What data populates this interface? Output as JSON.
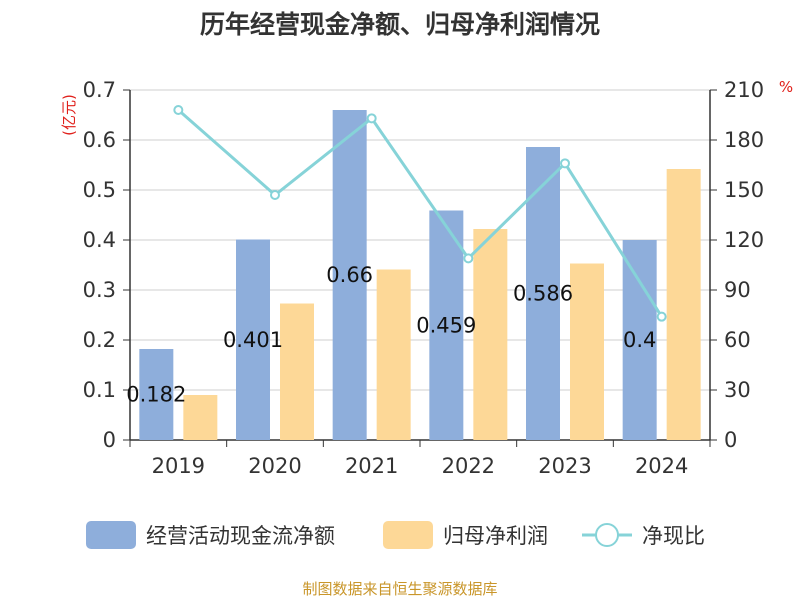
{
  "chart_data": {
    "type": "bar",
    "title": "历年经营现金净额、归母净利润情况",
    "categories": [
      "2019",
      "2020",
      "2021",
      "2022",
      "2023",
      "2024"
    ],
    "series": [
      {
        "name": "经营活动现金流净额",
        "type": "bar",
        "axis": "left",
        "color": "#8eaedb",
        "values": [
          0.182,
          0.401,
          0.66,
          0.459,
          0.586,
          0.4
        ],
        "labels": [
          "0.182",
          "0.401",
          "0.66",
          "0.459",
          "0.586",
          "0.4"
        ]
      },
      {
        "name": "归母净利润",
        "type": "bar",
        "axis": "left",
        "color": "#fdd897",
        "values": [
          0.09,
          0.273,
          0.341,
          0.422,
          0.353,
          0.542
        ]
      },
      {
        "name": "净现比",
        "type": "line",
        "axis": "right",
        "color": "#86d3d8",
        "values": [
          198,
          147,
          193,
          109,
          166,
          74
        ]
      }
    ],
    "y_left": {
      "label": "(亿元)",
      "min": 0,
      "max": 0.7,
      "ticks": [
        "0",
        "0.1",
        "0.2",
        "0.3",
        "0.4",
        "0.5",
        "0.6",
        "0.7"
      ]
    },
    "y_right": {
      "label": "%",
      "min": 0,
      "max": 210,
      "ticks": [
        "0",
        "30",
        "60",
        "90",
        "120",
        "150",
        "180",
        "210"
      ]
    },
    "grid": true,
    "legend_position": "bottom"
  },
  "footer": {
    "source": "制图数据来自恒生聚源数据库"
  }
}
